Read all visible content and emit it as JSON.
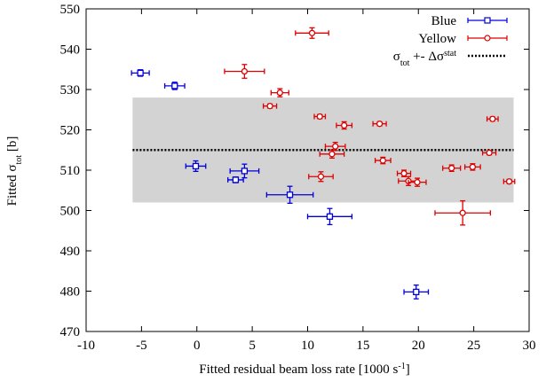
{
  "chart_data": {
    "type": "scatter",
    "xlabel": "Fitted residual beam loss rate [1000 s",
    "xlabel_sup": "-1",
    "xlabel_end": "]",
    "ylabel": "Fitted σ",
    "ylabel_sub": "tot",
    "ylabel_end": " [b]",
    "xlim": [
      -10,
      30
    ],
    "ylim": [
      470,
      550
    ],
    "xticks": [
      -10,
      -5,
      0,
      5,
      10,
      15,
      20,
      25,
      30
    ],
    "yticks": [
      470,
      480,
      490,
      500,
      510,
      520,
      530,
      540,
      550
    ],
    "legend_position": "top-right",
    "band": {
      "y_low": 502,
      "y_high": 528,
      "x_from": -5.8,
      "x_to": 28.6,
      "color": "#d3d3d3"
    },
    "mean_line": {
      "y": 515,
      "x_from": -5.8,
      "x_to": 28.6
    },
    "legend": {
      "blue": "Blue",
      "yellow": "Yellow",
      "line_main": "σ",
      "line_sub1": "tot",
      "line_mid": " +- Δσ",
      "line_sup": "stat"
    },
    "series": [
      {
        "name": "Blue",
        "color": "#0000dd",
        "marker": "square",
        "points": [
          {
            "x": -5.1,
            "y": 534.1,
            "xerr": 0.8,
            "yerr": 0.8
          },
          {
            "x": -2.0,
            "y": 530.9,
            "xerr": 0.9,
            "yerr": 0.9
          },
          {
            "x": -0.1,
            "y": 511.0,
            "xerr": 0.9,
            "yerr": 1.3
          },
          {
            "x": 3.5,
            "y": 507.6,
            "xerr": 0.7,
            "yerr": 0.7
          },
          {
            "x": 4.3,
            "y": 509.8,
            "xerr": 1.3,
            "yerr": 1.7
          },
          {
            "x": 8.4,
            "y": 503.9,
            "xerr": 2.1,
            "yerr": 2.1
          },
          {
            "x": 12.0,
            "y": 498.5,
            "xerr": 2.0,
            "yerr": 2.0
          },
          {
            "x": 19.8,
            "y": 479.8,
            "xerr": 1.1,
            "yerr": 1.7
          }
        ]
      },
      {
        "name": "Yellow",
        "color": "#dd0000",
        "marker": "circle",
        "points": [
          {
            "x": 4.3,
            "y": 534.5,
            "xerr": 1.8,
            "yerr": 1.7
          },
          {
            "x": 7.5,
            "y": 529.2,
            "xerr": 0.8,
            "yerr": 1.0
          },
          {
            "x": 6.6,
            "y": 525.9,
            "xerr": 0.6,
            "yerr": 0.5
          },
          {
            "x": 10.4,
            "y": 544.0,
            "xerr": 1.5,
            "yerr": 1.3
          },
          {
            "x": 11.1,
            "y": 523.3,
            "xerr": 0.5,
            "yerr": 0.5
          },
          {
            "x": 13.3,
            "y": 521.1,
            "xerr": 0.7,
            "yerr": 0.9
          },
          {
            "x": 12.5,
            "y": 515.9,
            "xerr": 0.9,
            "yerr": 1.0
          },
          {
            "x": 12.2,
            "y": 514.0,
            "xerr": 1.1,
            "yerr": 1.0
          },
          {
            "x": 11.2,
            "y": 508.4,
            "xerr": 1.1,
            "yerr": 1.2
          },
          {
            "x": 16.5,
            "y": 521.5,
            "xerr": 0.6,
            "yerr": 0.5
          },
          {
            "x": 16.8,
            "y": 512.4,
            "xerr": 0.7,
            "yerr": 0.8
          },
          {
            "x": 18.7,
            "y": 509.2,
            "xerr": 0.6,
            "yerr": 0.8
          },
          {
            "x": 19.1,
            "y": 507.3,
            "xerr": 0.9,
            "yerr": 1.1
          },
          {
            "x": 19.9,
            "y": 507.0,
            "xerr": 0.8,
            "yerr": 1.0
          },
          {
            "x": 23.0,
            "y": 510.5,
            "xerr": 0.8,
            "yerr": 0.8
          },
          {
            "x": 24.9,
            "y": 510.8,
            "xerr": 0.7,
            "yerr": 0.8
          },
          {
            "x": 26.7,
            "y": 522.7,
            "xerr": 0.5,
            "yerr": 0.5
          },
          {
            "x": 26.4,
            "y": 514.3,
            "xerr": 0.6,
            "yerr": 0.5
          },
          {
            "x": 28.2,
            "y": 507.2,
            "xerr": 0.5,
            "yerr": 0.5
          },
          {
            "x": 24.0,
            "y": 499.4,
            "xerr": 2.5,
            "yerr": 3.0
          }
        ]
      }
    ]
  }
}
